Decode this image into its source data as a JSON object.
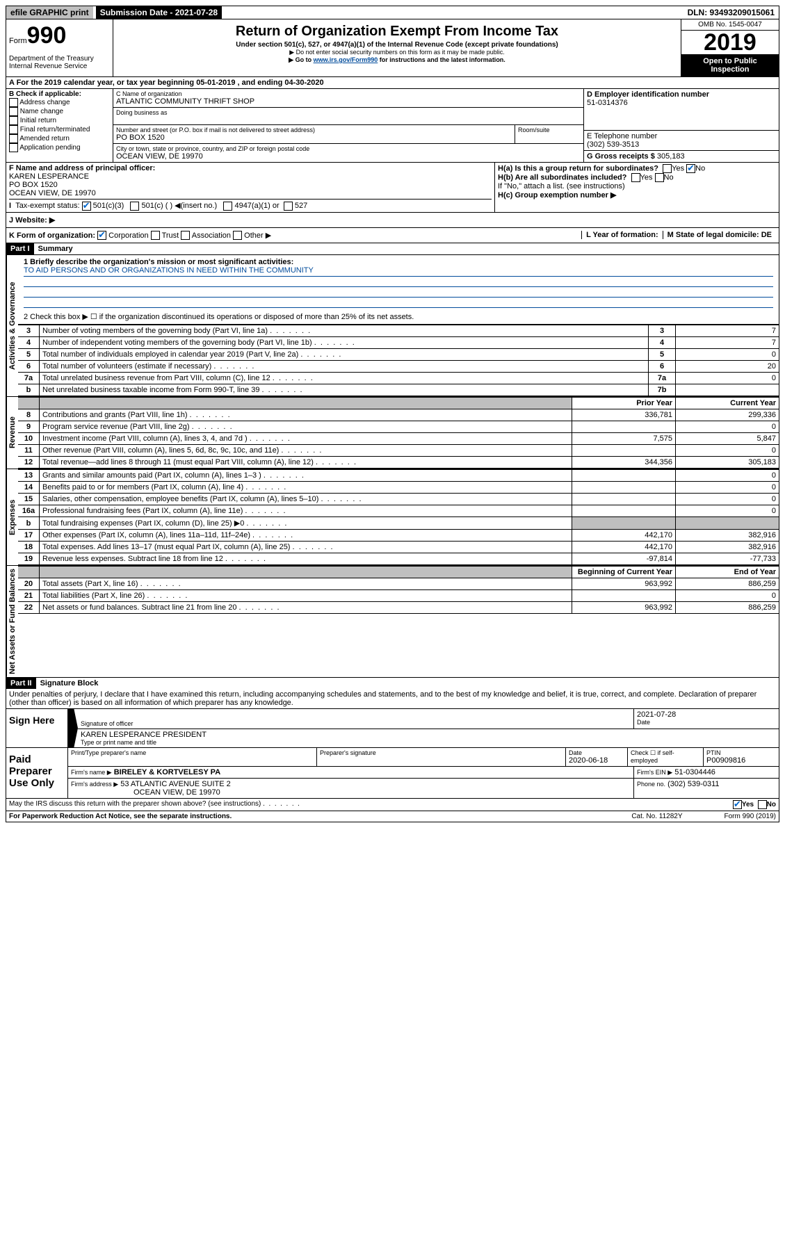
{
  "topbar": {
    "efile": "efile GRAPHIC print",
    "submission": "Submission Date - 2021-07-28",
    "dln": "DLN: 93493209015061"
  },
  "header": {
    "form_prefix": "Form",
    "form_no": "990",
    "title": "Return of Organization Exempt From Income Tax",
    "subtitle": "Under section 501(c), 527, or 4947(a)(1) of the Internal Revenue Code (except private foundations)",
    "note1": "▶ Do not enter social security numbers on this form as it may be made public.",
    "note2_pre": "▶ Go to ",
    "note2_link": "www.irs.gov/Form990",
    "note2_post": " for instructions and the latest information.",
    "dept": "Department of the Treasury\nInternal Revenue Service",
    "omb": "OMB No. 1545-0047",
    "year": "2019",
    "open": "Open to Public Inspection"
  },
  "rowA": "A For the 2019 calendar year, or tax year beginning 05-01-2019   , and ending 04-30-2020",
  "sectionB": {
    "title": "B Check if applicable:",
    "opts": [
      "Address change",
      "Name change",
      "Initial return",
      "Final return/terminated",
      "Amended return",
      "Application pending"
    ]
  },
  "sectionC": {
    "name_label": "C Name of organization",
    "name": "ATLANTIC COMMUNITY THRIFT SHOP",
    "dba_label": "Doing business as",
    "addr_label": "Number and street (or P.O. box if mail is not delivered to street address)",
    "room_label": "Room/suite",
    "addr": "PO BOX 1520",
    "city_label": "City or town, state or province, country, and ZIP or foreign postal code",
    "city": "OCEAN VIEW, DE  19970"
  },
  "sectionD": {
    "label": "D Employer identification number",
    "ein": "51-0314376"
  },
  "sectionE": {
    "label": "E Telephone number",
    "phone": "(302) 539-3513"
  },
  "sectionG": {
    "label": "G Gross receipts $ ",
    "val": "305,183"
  },
  "sectionF": {
    "label": "F  Name and address of principal officer:",
    "name": "KAREN LESPERANCE",
    "addr1": "PO BOX 1520",
    "addr2": "OCEAN VIEW, DE  19970"
  },
  "sectionH": {
    "a": "H(a)  Is this a group return for subordinates?",
    "b": "H(b)  Are all subordinates included?",
    "b_note": "If \"No,\" attach a list. (see instructions)",
    "c": "H(c)  Group exemption number ▶"
  },
  "rowI": {
    "label": "Tax-exempt status:",
    "opts": [
      "501(c)(3)",
      "501(c) (  ) ◀(insert no.)",
      "4947(a)(1) or",
      "527"
    ]
  },
  "rowJ": "J    Website: ▶",
  "rowK": {
    "label": "K Form of organization:",
    "opts": [
      "Corporation",
      "Trust",
      "Association",
      "Other ▶"
    ],
    "L": "L Year of formation:",
    "M": "M State of legal domicile: DE"
  },
  "partI": {
    "header": "Part I",
    "title": "Summary",
    "q1": "1  Briefly describe the organization's mission or most significant activities:",
    "q1_ans": "TO AID PERSONS AND OR ORGANIZATIONS IN NEED WITHIN THE COMMUNITY",
    "q2": "2   Check this box ▶ ☐  if the organization discontinued its operations or disposed of more than 25% of its net assets."
  },
  "sideLabels": {
    "gov": "Activities & Governance",
    "rev": "Revenue",
    "exp": "Expenses",
    "net": "Net Assets or Fund Balances"
  },
  "govRows": [
    {
      "n": "3",
      "label": "Number of voting members of the governing body (Part VI, line 1a)",
      "c": "3",
      "v": "7"
    },
    {
      "n": "4",
      "label": "Number of independent voting members of the governing body (Part VI, line 1b)",
      "c": "4",
      "v": "7"
    },
    {
      "n": "5",
      "label": "Total number of individuals employed in calendar year 2019 (Part V, line 2a)",
      "c": "5",
      "v": "0"
    },
    {
      "n": "6",
      "label": "Total number of volunteers (estimate if necessary)",
      "c": "6",
      "v": "20"
    },
    {
      "n": "7a",
      "label": "Total unrelated business revenue from Part VIII, column (C), line 12",
      "c": "7a",
      "v": "0"
    },
    {
      "n": "b",
      "label": "Net unrelated business taxable income from Form 990-T, line 39",
      "c": "7b",
      "v": ""
    }
  ],
  "yearHeaders": {
    "prior": "Prior Year",
    "current": "Current Year"
  },
  "revRows": [
    {
      "n": "8",
      "label": "Contributions and grants (Part VIII, line 1h)",
      "p": "336,781",
      "c": "299,336"
    },
    {
      "n": "9",
      "label": "Program service revenue (Part VIII, line 2g)",
      "p": "",
      "c": "0"
    },
    {
      "n": "10",
      "label": "Investment income (Part VIII, column (A), lines 3, 4, and 7d )",
      "p": "7,575",
      "c": "5,847"
    },
    {
      "n": "11",
      "label": "Other revenue (Part VIII, column (A), lines 5, 6d, 8c, 9c, 10c, and 11e)",
      "p": "",
      "c": "0"
    },
    {
      "n": "12",
      "label": "Total revenue—add lines 8 through 11 (must equal Part VIII, column (A), line 12)",
      "p": "344,356",
      "c": "305,183"
    }
  ],
  "expRows": [
    {
      "n": "13",
      "label": "Grants and similar amounts paid (Part IX, column (A), lines 1–3 )",
      "p": "",
      "c": "0"
    },
    {
      "n": "14",
      "label": "Benefits paid to or for members (Part IX, column (A), line 4)",
      "p": "",
      "c": "0"
    },
    {
      "n": "15",
      "label": "Salaries, other compensation, employee benefits (Part IX, column (A), lines 5–10)",
      "p": "",
      "c": "0"
    },
    {
      "n": "16a",
      "label": "Professional fundraising fees (Part IX, column (A), line 11e)",
      "p": "",
      "c": "0"
    },
    {
      "n": "b",
      "label": "Total fundraising expenses (Part IX, column (D), line 25) ▶0",
      "p": "shaded",
      "c": "shaded"
    },
    {
      "n": "17",
      "label": "Other expenses (Part IX, column (A), lines 11a–11d, 11f–24e)",
      "p": "442,170",
      "c": "382,916"
    },
    {
      "n": "18",
      "label": "Total expenses. Add lines 13–17 (must equal Part IX, column (A), line 25)",
      "p": "442,170",
      "c": "382,916"
    },
    {
      "n": "19",
      "label": "Revenue less expenses. Subtract line 18 from line 12",
      "p": "-97,814",
      "c": "-77,733"
    }
  ],
  "netHeaders": {
    "beg": "Beginning of Current Year",
    "end": "End of Year"
  },
  "netRows": [
    {
      "n": "20",
      "label": "Total assets (Part X, line 16)",
      "p": "963,992",
      "c": "886,259"
    },
    {
      "n": "21",
      "label": "Total liabilities (Part X, line 26)",
      "p": "",
      "c": "0"
    },
    {
      "n": "22",
      "label": "Net assets or fund balances. Subtract line 21 from line 20",
      "p": "963,992",
      "c": "886,259"
    }
  ],
  "partII": {
    "header": "Part II",
    "title": "Signature Block",
    "decl": "Under penalties of perjury, I declare that I have examined this return, including accompanying schedules and statements, and to the best of my knowledge and belief, it is true, correct, and complete. Declaration of preparer (other than officer) is based on all information of which preparer has any knowledge."
  },
  "sign": {
    "label": "Sign Here",
    "sig_label": "Signature of officer",
    "date": "2021-07-28",
    "date_label": "Date",
    "name": "KAREN LESPERANCE  PRESIDENT",
    "name_label": "Type or print name and title"
  },
  "preparer": {
    "label": "Paid Preparer Use Only",
    "h1": "Print/Type preparer's name",
    "h2": "Preparer's signature",
    "h3": "Date",
    "h3v": "2020-06-18",
    "h4": "Check ☐ if self-employed",
    "h5": "PTIN",
    "h5v": "P00909816",
    "firm_label": "Firm's name    ▶",
    "firm": "BIRELEY & KORTVELESY PA",
    "ein_label": "Firm's EIN ▶",
    "ein": "51-0304446",
    "addr_label": "Firm's address ▶",
    "addr1": "53 ATLANTIC AVENUE SUITE 2",
    "addr2": "OCEAN VIEW, DE  19970",
    "phone_label": "Phone no.",
    "phone": "(302) 539-0311"
  },
  "discuss": "May the IRS discuss this return with the preparer shown above? (see instructions)",
  "footer": {
    "left": "For Paperwork Reduction Act Notice, see the separate instructions.",
    "mid": "Cat. No. 11282Y",
    "right": "Form 990 (2019)"
  }
}
